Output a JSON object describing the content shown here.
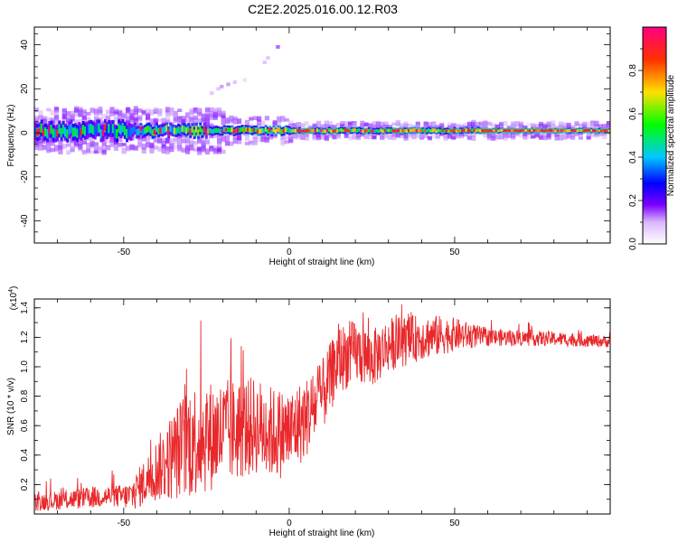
{
  "title": "C2E2.2025.016.00.12.R03",
  "colors": {
    "snr_line": "#e8282b",
    "colormap": [
      "#ffffff",
      "#d9b8ff",
      "#7a00ff",
      "#0000ff",
      "#00c8ff",
      "#00ff00",
      "#ffe000",
      "#ff3000",
      "#ff0080"
    ]
  },
  "chart_data": [
    {
      "type": "heatmap",
      "xlabel": "Height of straight line (km)",
      "ylabel": "Frequency (Hz)",
      "xlim": [
        -77,
        97
      ],
      "ylim": [
        -50,
        48
      ],
      "xticks": [
        -50,
        0,
        50
      ],
      "yticks": [
        -40,
        -20,
        0,
        20,
        40
      ],
      "xtick_labels": [
        "-50",
        "0",
        "50"
      ],
      "ytick_labels": [
        "-40",
        "-20",
        "0",
        "20",
        "40"
      ],
      "colorbar": {
        "label": "Normalized spectral amplitude",
        "range": [
          0,
          1
        ],
        "ticks": [
          0.0,
          0.2,
          0.4,
          0.6,
          0.8
        ],
        "tick_labels": [
          "0.0",
          "0.2",
          "0.4",
          "0.6",
          "0.8"
        ]
      },
      "band_center_hz": 1,
      "scatter_points": [
        {
          "x": -4,
          "y": 39,
          "v": 0.15
        },
        {
          "x": -8,
          "y": 32,
          "v": 0.1
        },
        {
          "x": -7,
          "y": 34,
          "v": 0.1
        },
        {
          "x": -19,
          "y": 22,
          "v": 0.12
        },
        {
          "x": -21,
          "y": 21,
          "v": 0.12
        },
        {
          "x": -22,
          "y": 20,
          "v": 0.1
        },
        {
          "x": -17,
          "y": 23,
          "v": 0.1
        },
        {
          "x": -24,
          "y": 18,
          "v": 0.1
        },
        {
          "x": -14,
          "y": 24,
          "v": 0.06
        }
      ]
    },
    {
      "type": "line",
      "xlabel": "Height of straight line (km)",
      "ylabel": "SNR (10 * v/v)",
      "yscale_label": "(x10",
      "yscale_exp": "4",
      "yscale_suffix": ")",
      "xlim": [
        -77,
        97
      ],
      "ylim": [
        0,
        1.46
      ],
      "xticks": [
        -50,
        0,
        50
      ],
      "yticks": [
        0.2,
        0.4,
        0.6,
        0.8,
        1.0,
        1.2,
        1.4
      ],
      "xtick_labels": [
        "-50",
        "0",
        "50"
      ],
      "ytick_labels": [
        "0.2",
        "0.4",
        "0.6",
        "0.8",
        "1.0",
        "1.2",
        "1.4"
      ],
      "trend": [
        {
          "x": -77,
          "y": 0.08
        },
        {
          "x": -55,
          "y": 0.12
        },
        {
          "x": -48,
          "y": 0.12
        },
        {
          "x": -40,
          "y": 0.3
        },
        {
          "x": -30,
          "y": 0.5
        },
        {
          "x": -20,
          "y": 0.55
        },
        {
          "x": -10,
          "y": 0.6
        },
        {
          "x": -5,
          "y": 0.55
        },
        {
          "x": 0,
          "y": 0.55
        },
        {
          "x": 5,
          "y": 0.65
        },
        {
          "x": 10,
          "y": 0.8
        },
        {
          "x": 15,
          "y": 1.05
        },
        {
          "x": 20,
          "y": 1.1
        },
        {
          "x": 25,
          "y": 1.05
        },
        {
          "x": 30,
          "y": 1.15
        },
        {
          "x": 40,
          "y": 1.2
        },
        {
          "x": 50,
          "y": 1.22
        },
        {
          "x": 60,
          "y": 1.2
        },
        {
          "x": 80,
          "y": 1.19
        },
        {
          "x": 97,
          "y": 1.17
        }
      ],
      "noise": [
        {
          "x": -77,
          "a": 0.06
        },
        {
          "x": -50,
          "a": 0.08
        },
        {
          "x": -42,
          "a": 0.18
        },
        {
          "x": -30,
          "a": 0.4
        },
        {
          "x": -15,
          "a": 0.35
        },
        {
          "x": 0,
          "a": 0.3
        },
        {
          "x": 10,
          "a": 0.25
        },
        {
          "x": 25,
          "a": 0.2
        },
        {
          "x": 45,
          "a": 0.14
        },
        {
          "x": 60,
          "a": 0.06
        },
        {
          "x": 97,
          "a": 0.04
        }
      ]
    }
  ]
}
